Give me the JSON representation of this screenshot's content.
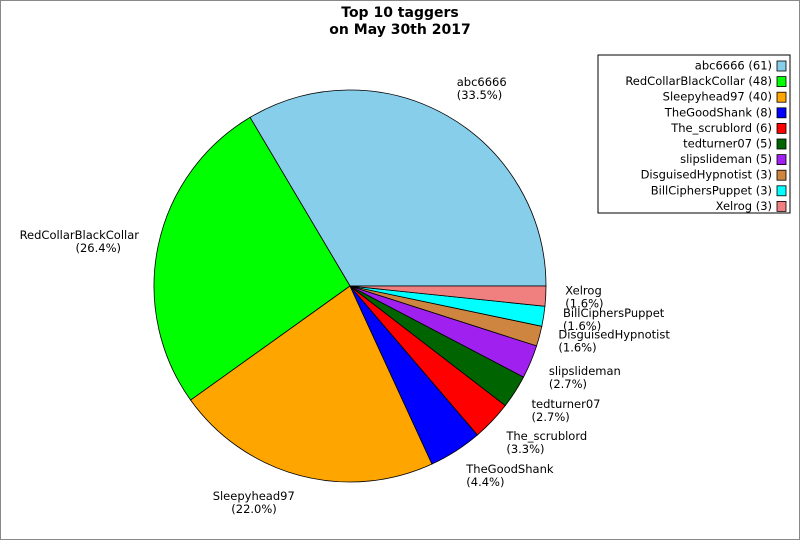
{
  "chart_data": {
    "type": "pie",
    "title": "Top 10 taggers",
    "subtitle": "on May 30th 2017",
    "categories": [
      "abc6666",
      "RedCollarBlackCollar",
      "Sleepyhead97",
      "TheGoodShank",
      "The_scrublord",
      "tedturner07",
      "slipslideman",
      "DisguisedHypnotist",
      "BillCiphersPuppet",
      "Xelrog"
    ],
    "values": [
      61,
      48,
      40,
      8,
      6,
      5,
      5,
      3,
      3,
      3
    ],
    "legend_labels": [
      "abc6666 (61)",
      "RedCollarBlackCollar (48)",
      "Sleepyhead97 (40)",
      "TheGoodShank (8)",
      "The_scrublord (6)",
      "tedturner07 (5)",
      "slipslideman (5)",
      "DisguisedHypnotist (3)",
      "BillCiphersPuppet (3)",
      "Xelrog (3)"
    ],
    "percents": [
      33.5,
      26.4,
      22.0,
      4.4,
      3.3,
      2.7,
      2.7,
      1.6,
      1.6,
      1.6
    ],
    "percent_labels": [
      "(33.5%)",
      "(26.4%)",
      "(22.0%)",
      "(4.4%)",
      "(3.3%)",
      "(2.7%)",
      "(2.7%)",
      "(1.6%)",
      "(1.6%)",
      "(1.6%)"
    ],
    "colors": [
      "#87ceeb",
      "#00ff00",
      "#ffa500",
      "#0000ff",
      "#ff0000",
      "#006400",
      "#a020f0",
      "#cd853f",
      "#00ffff",
      "#f08080"
    ],
    "legend": "upper right"
  }
}
